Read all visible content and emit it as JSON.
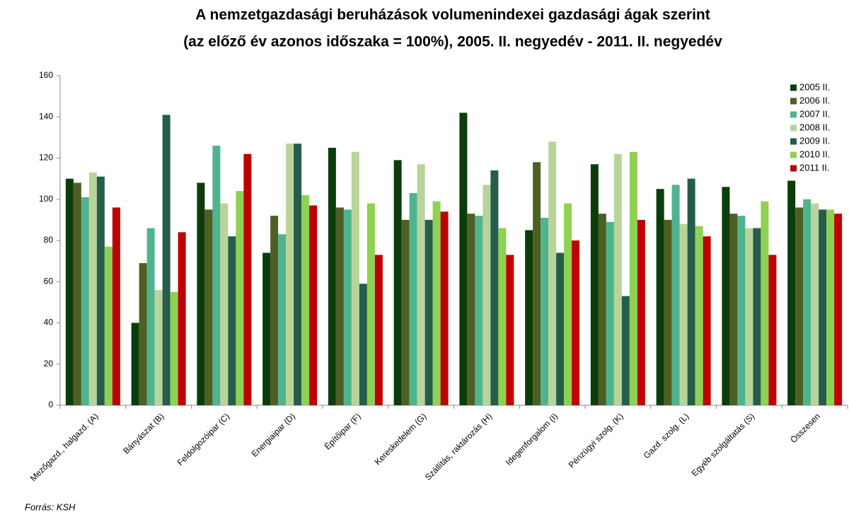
{
  "chart_data": {
    "type": "bar",
    "title": "A nemzetgazdasági beruházások volumenindexei gazdasági ágak szerint",
    "subtitle": "(az előző év azonos időszaka = 100%), 2005. II. negyedév - 2011. II. negyedév",
    "source": "Forrás: KSH",
    "categories": [
      "Mezőgazd., halgazd. (A)",
      "Bányászat (B)",
      "Feldolgozóipar (C)",
      "Energiaipar (D)",
      "Építőipar (F)",
      "Kereskedelem (G)",
      "Szállítás, raktározás (H)",
      "Idegenforgalom (I)",
      "Pénzügyi szolg. (K)",
      "Gazd. szolg. (L)",
      "Egyéb szolgáltatás  (S)",
      "Összesen"
    ],
    "series": [
      {
        "name": "2005 II.",
        "color": "#0b3d0b",
        "values": [
          110,
          40,
          108,
          74,
          125,
          119,
          142,
          85,
          117,
          105,
          106,
          109
        ]
      },
      {
        "name": "2006 II.",
        "color": "#4e5f24",
        "values": [
          108,
          69,
          95,
          92,
          96,
          90,
          93,
          118,
          93,
          90,
          93,
          96
        ]
      },
      {
        "name": "2007 II.",
        "color": "#4fb48e",
        "values": [
          101,
          86,
          126,
          83,
          95,
          103,
          92,
          91,
          89,
          107,
          92,
          100
        ]
      },
      {
        "name": "2008 II.",
        "color": "#b9d49b",
        "values": [
          113,
          56,
          98,
          127,
          123,
          117,
          107,
          128,
          122,
          88,
          86,
          98
        ]
      },
      {
        "name": "2009 II.",
        "color": "#255d4b",
        "values": [
          111,
          141,
          82,
          127,
          59,
          90,
          114,
          74,
          53,
          110,
          86,
          95
        ]
      },
      {
        "name": "2010 II.",
        "color": "#8fd150",
        "values": [
          77,
          55,
          104,
          102,
          98,
          99,
          86,
          98,
          123,
          87,
          99,
          95
        ]
      },
      {
        "name": "2011 II.",
        "color": "#c00000",
        "values": [
          96,
          84,
          122,
          97,
          73,
          94,
          73,
          80,
          90,
          82,
          73,
          93
        ]
      }
    ],
    "ylim": [
      0,
      160
    ],
    "yticks": [
      0,
      20,
      40,
      60,
      80,
      100,
      120,
      140,
      160
    ],
    "grid": false,
    "legend": "top-right"
  }
}
